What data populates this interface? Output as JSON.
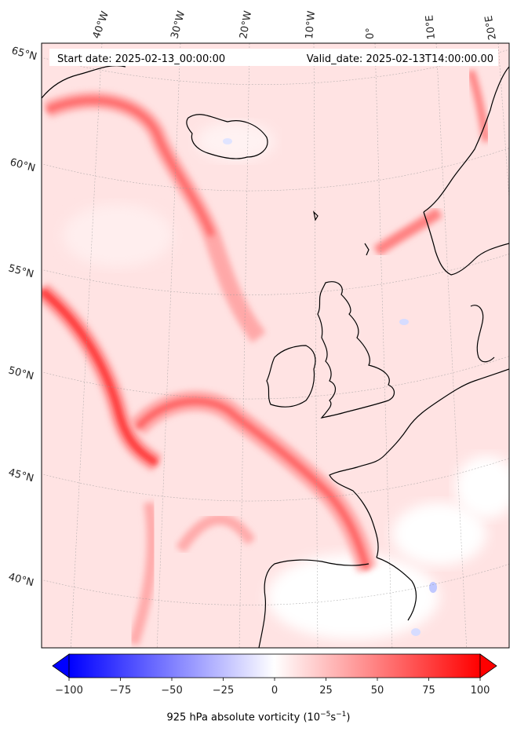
{
  "header": {
    "start_date": "Start date: 2025-02-13_00:00:00",
    "valid_date": "Valid_date: 2025-02-13T14:00:00.00"
  },
  "lon_labels": [
    "40°W",
    "30°W",
    "20°W",
    "10°W",
    "0°",
    "10°E",
    "20°E"
  ],
  "lat_labels": [
    "65°N",
    "60°N",
    "55°N",
    "50°N",
    "45°N",
    "40°N"
  ],
  "colorbar": {
    "ticks": [
      "−100",
      "−75",
      "−50",
      "−25",
      "0",
      "25",
      "50",
      "75",
      "100"
    ],
    "label_text": "925 hPa absolute vorticity (10",
    "label_exp1": "−5",
    "label_mid": "s",
    "label_exp2": "−1",
    "label_end": ")",
    "min_color": "#0000ff",
    "mid_color": "#ffffff",
    "max_color": "#ff0000",
    "levels": [
      -100,
      100
    ]
  },
  "colors": {
    "land_line": "#000000",
    "background_field": "#ffe6e6",
    "vortex_band": "#ff3333"
  }
}
